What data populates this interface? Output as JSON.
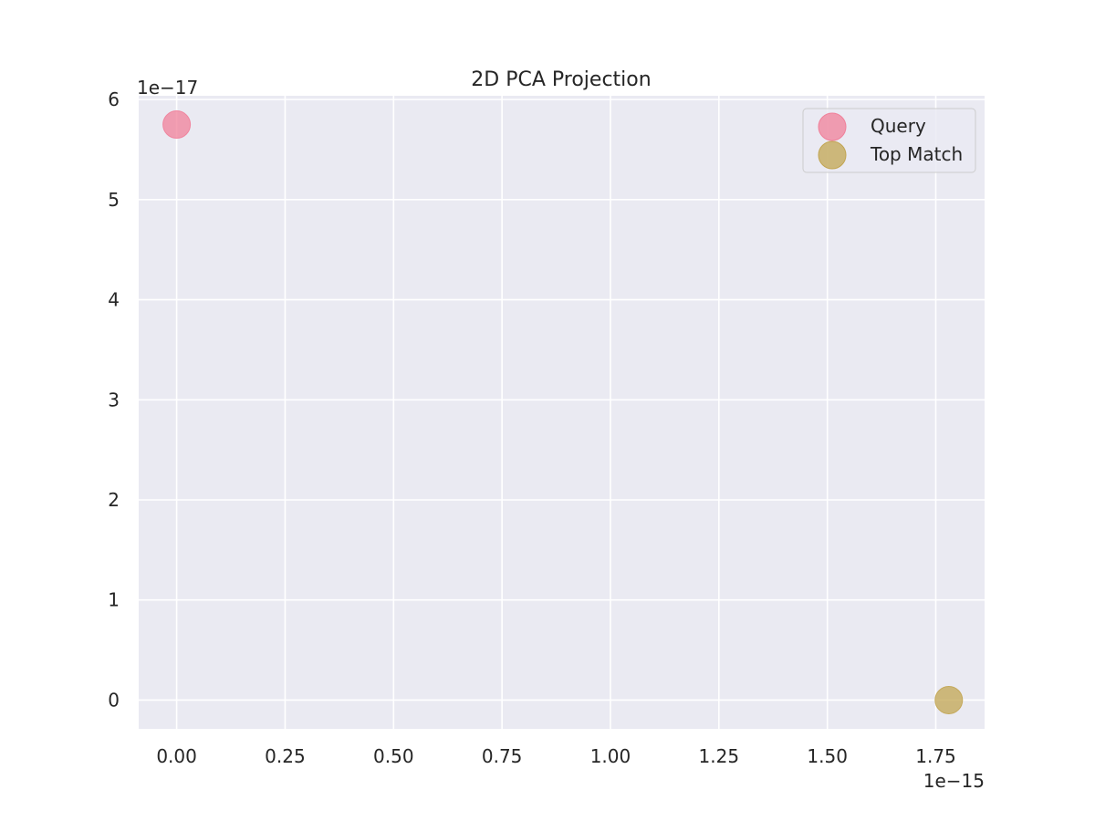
{
  "chart_data": {
    "type": "scatter",
    "title": "2D PCA Projection",
    "xlabel": "",
    "ylabel": "",
    "x_offset_label": "1e−15",
    "y_offset_label": "1e−17",
    "xlim": [
      -0.0875,
      1.8625
    ],
    "ylim": [
      -0.2875,
      6.0375
    ],
    "x_ticks": [
      0.0,
      0.25,
      0.5,
      0.75,
      1.0,
      1.25,
      1.5,
      1.75
    ],
    "x_tick_labels": [
      "0.00",
      "0.25",
      "0.50",
      "0.75",
      "1.00",
      "1.25",
      "1.50",
      "1.75"
    ],
    "y_ticks": [
      0,
      1,
      2,
      3,
      4,
      5,
      6
    ],
    "y_tick_labels": [
      "0",
      "1",
      "2",
      "3",
      "4",
      "5",
      "6"
    ],
    "grid": true,
    "legend_position": "top-right",
    "series": [
      {
        "name": "Query",
        "color": "#f0809a",
        "points": [
          {
            "x": 0.0,
            "y": 5.75
          }
        ]
      },
      {
        "name": "Top Match",
        "color": "#c2a552",
        "points": [
          {
            "x": 1.78,
            "y": 0.0
          }
        ]
      }
    ],
    "plot_background": "#eaeaf2",
    "grid_color": "#ffffff"
  }
}
